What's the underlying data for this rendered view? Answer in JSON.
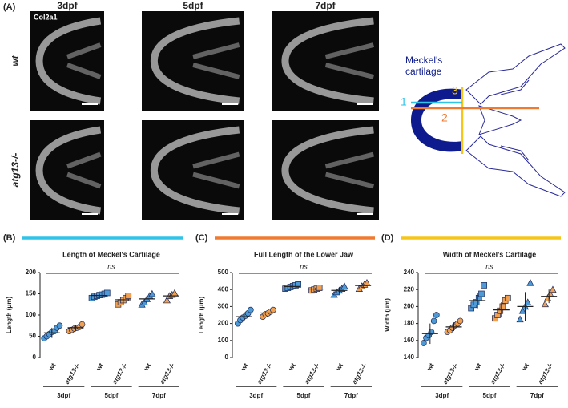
{
  "panel_a": {
    "label": "(A)",
    "columns": [
      "3dpf",
      "5dpf",
      "7dpf"
    ],
    "rows": [
      "wt",
      "atg13-/-"
    ],
    "stain": "Col2a1",
    "diagram": {
      "label_lines": [
        "Meckel's",
        "cartilage"
      ],
      "measures": [
        "1",
        "2",
        "3"
      ]
    }
  },
  "chart_data": [
    {
      "type": "dot",
      "panel": "(B)",
      "title": "Length of Meckel's Cartilage",
      "ylabel": "Length (μm)",
      "bar_color": "#2ec4e8",
      "annotation": "ns",
      "categories": [
        "wt",
        "atg13-/-",
        "wt",
        "atg13-/-",
        "wt",
        "atg13-/-"
      ],
      "groups": [
        "3dpf",
        "5dpf",
        "7dpf"
      ],
      "colors": [
        "#4d9ad6",
        "#f0a050"
      ],
      "markers": [
        "circle",
        "square",
        "triangle"
      ],
      "values": [
        [
          45,
          50,
          55,
          60,
          62,
          70,
          75
        ],
        [
          62,
          65,
          68,
          70,
          72,
          78
        ],
        [
          140,
          143,
          145,
          147,
          148,
          150,
          152
        ],
        [
          125,
          130,
          135,
          140,
          145
        ],
        [
          125,
          130,
          138,
          145,
          150
        ],
        [
          135,
          145,
          148,
          152
        ]
      ],
      "means": [
        58,
        70,
        146,
        136,
        138,
        145
      ],
      "sds": [
        12,
        7,
        4,
        8,
        10,
        7
      ],
      "ylim": [
        0,
        200
      ],
      "yticks": [
        0,
        50,
        100,
        150,
        200
      ]
    },
    {
      "type": "dot",
      "panel": "(C)",
      "title": "Full Length of the Lower Jaw",
      "ylabel": "Length (μm)",
      "bar_color": "#f07a30",
      "annotation": "ns",
      "categories": [
        "wt",
        "atg13-/-",
        "wt",
        "atg13-/-",
        "wt",
        "atg13-/-"
      ],
      "groups": [
        "3dpf",
        "5dpf",
        "7dpf"
      ],
      "colors": [
        "#4d9ad6",
        "#f0a050"
      ],
      "markers": [
        "circle",
        "square",
        "triangle"
      ],
      "values": [
        [
          200,
          220,
          235,
          245,
          260,
          280
        ],
        [
          240,
          255,
          260,
          270,
          280
        ],
        [
          405,
          410,
          415,
          420,
          425,
          430
        ],
        [
          395,
          400,
          405,
          410
        ],
        [
          370,
          385,
          395,
          405,
          420
        ],
        [
          405,
          420,
          430,
          440
        ]
      ],
      "means": [
        240,
        262,
        418,
        403,
        395,
        424
      ],
      "sds": [
        28,
        15,
        9,
        8,
        18,
        15
      ],
      "ylim": [
        0,
        500
      ],
      "yticks": [
        0,
        100,
        200,
        300,
        400,
        500
      ]
    },
    {
      "type": "dot",
      "panel": "(D)",
      "title": "Width of Meckel's Cartilage",
      "ylabel": "Width (μm)",
      "bar_color": "#f5c518",
      "annotation": "ns",
      "categories": [
        "wt",
        "atg13-/-",
        "wt",
        "atg13-/-",
        "wt",
        "atg13-/-"
      ],
      "groups": [
        "3dpf",
        "5dpf",
        "7dpf"
      ],
      "colors": [
        "#4d9ad6",
        "#f0a050"
      ],
      "markers": [
        "circle",
        "square",
        "triangle"
      ],
      "values": [
        [
          157,
          163,
          166,
          170,
          183,
          190
        ],
        [
          170,
          172,
          175,
          178,
          180,
          183
        ],
        [
          198,
          202,
          205,
          210,
          215,
          225
        ],
        [
          186,
          190,
          195,
          200,
          207,
          210
        ],
        [
          185,
          195,
          200,
          205,
          228
        ],
        [
          203,
          210,
          215,
          220
        ]
      ],
      "means": [
        168,
        176,
        207,
        196,
        200,
        212
      ],
      "sds": [
        12,
        5,
        9,
        9,
        17,
        8
      ],
      "ylim": [
        140,
        240
      ],
      "yticks": [
        140,
        160,
        180,
        200,
        220,
        240
      ]
    }
  ]
}
